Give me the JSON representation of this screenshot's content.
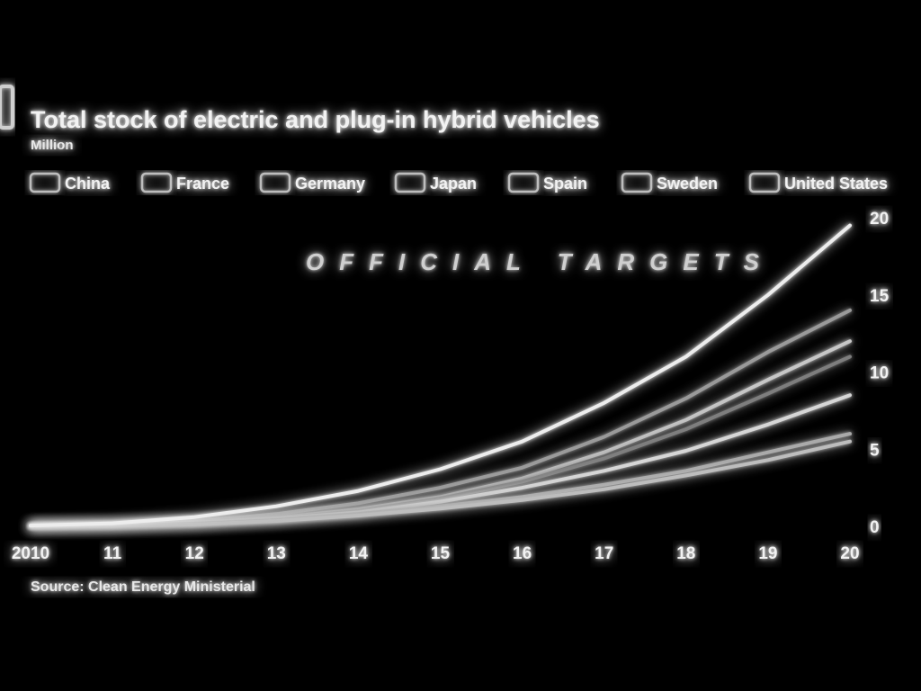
{
  "chart_data": {
    "type": "line",
    "title": "Total stock of electric and plug-in hybrid vehicles",
    "subtitle": "Million",
    "annotation": "OFFICIAL TARGETS",
    "source": "Source: Clean Energy Ministerial",
    "x_tick_labels": [
      "2010",
      "11",
      "12",
      "13",
      "14",
      "15",
      "16",
      "17",
      "18",
      "19",
      "20"
    ],
    "x": [
      2010,
      2011,
      2012,
      2013,
      2014,
      2015,
      2016,
      2017,
      2018,
      2019,
      2020
    ],
    "xlim": [
      2010,
      2020
    ],
    "ylim": [
      0,
      20
    ],
    "y_ticks": [
      0,
      5,
      10,
      15,
      20
    ],
    "y_axis_side": "right",
    "grid": "horizontal",
    "legend_position": "top",
    "divider_year": 2012,
    "series": [
      {
        "name": "China",
        "values": [
          0.02,
          0.1,
          0.3,
          0.8,
          1.5,
          2.5,
          3.8,
          5.8,
          8.3,
          11.3,
          14.0
        ]
      },
      {
        "name": "France",
        "values": [
          0.01,
          0.05,
          0.2,
          0.55,
          1.1,
          1.9,
          3.1,
          4.8,
          6.9,
          9.5,
          12.0
        ]
      },
      {
        "name": "Germany",
        "values": [
          0.01,
          0.05,
          0.2,
          0.5,
          1.0,
          1.8,
          2.9,
          4.4,
          6.3,
          8.6,
          11.0
        ]
      },
      {
        "name": "Japan",
        "values": [
          0.02,
          0.08,
          0.25,
          0.5,
          0.9,
          1.6,
          2.5,
          3.6,
          4.9,
          6.6,
          8.5
        ]
      },
      {
        "name": "Spain",
        "values": [
          0.01,
          0.05,
          0.15,
          0.4,
          0.8,
          1.3,
          1.9,
          2.7,
          3.6,
          4.8,
          6.0
        ]
      },
      {
        "name": "Sweden",
        "values": [
          0.01,
          0.03,
          0.12,
          0.35,
          0.7,
          1.15,
          1.7,
          2.4,
          3.3,
          4.3,
          5.5
        ]
      },
      {
        "name": "United States",
        "values": [
          0.05,
          0.2,
          0.6,
          1.3,
          2.3,
          3.7,
          5.5,
          8.0,
          11.0,
          15.0,
          19.5
        ]
      }
    ]
  },
  "colors": {
    "background": "#000000",
    "foreground": "#f2f2f2",
    "grid": "#8a8a8a",
    "series": [
      "#9a9a9a",
      "#c8c8c8",
      "#7e7e7e",
      "#d6d6d6",
      "#a8a8a8",
      "#bdbdbd",
      "#ededed"
    ]
  }
}
